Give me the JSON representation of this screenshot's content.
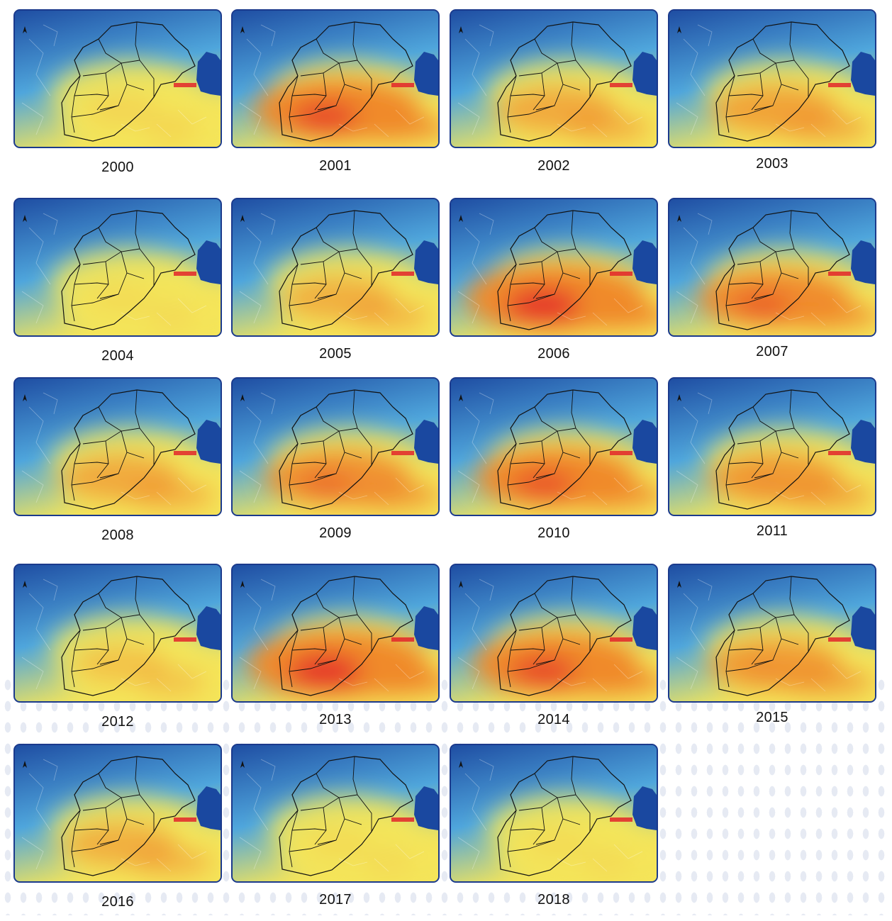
{
  "figure": {
    "colors": {
      "low": "#1f4ea3",
      "mid_low": "#4fa6dc",
      "mid": "#f4e55a",
      "high": "#f08a2c",
      "very_high": "#e3262a",
      "sea": "#1a48a0",
      "border": "#111111",
      "frame": "#1b3a8c"
    },
    "legend": {
      "north_arrow": "north-arrow-icon"
    },
    "panels": [
      {
        "year": "2000",
        "intensity": 0.15
      },
      {
        "year": "2001",
        "intensity": 0.85
      },
      {
        "year": "2002",
        "intensity": 0.5
      },
      {
        "year": "2003",
        "intensity": 0.55
      },
      {
        "year": "2004",
        "intensity": 0.1
      },
      {
        "year": "2005",
        "intensity": 0.45
      },
      {
        "year": "2006",
        "intensity": 0.95
      },
      {
        "year": "2007",
        "intensity": 0.75
      },
      {
        "year": "2008",
        "intensity": 0.5
      },
      {
        "year": "2009",
        "intensity": 0.7
      },
      {
        "year": "2010",
        "intensity": 0.8
      },
      {
        "year": "2011",
        "intensity": 0.6
      },
      {
        "year": "2012",
        "intensity": 0.3
      },
      {
        "year": "2013",
        "intensity": 0.95
      },
      {
        "year": "2014",
        "intensity": 0.85
      },
      {
        "year": "2015",
        "intensity": 0.6
      },
      {
        "year": "2016",
        "intensity": 0.45
      },
      {
        "year": "2017",
        "intensity": 0.1
      },
      {
        "year": "2018",
        "intensity": 0.1
      }
    ]
  }
}
